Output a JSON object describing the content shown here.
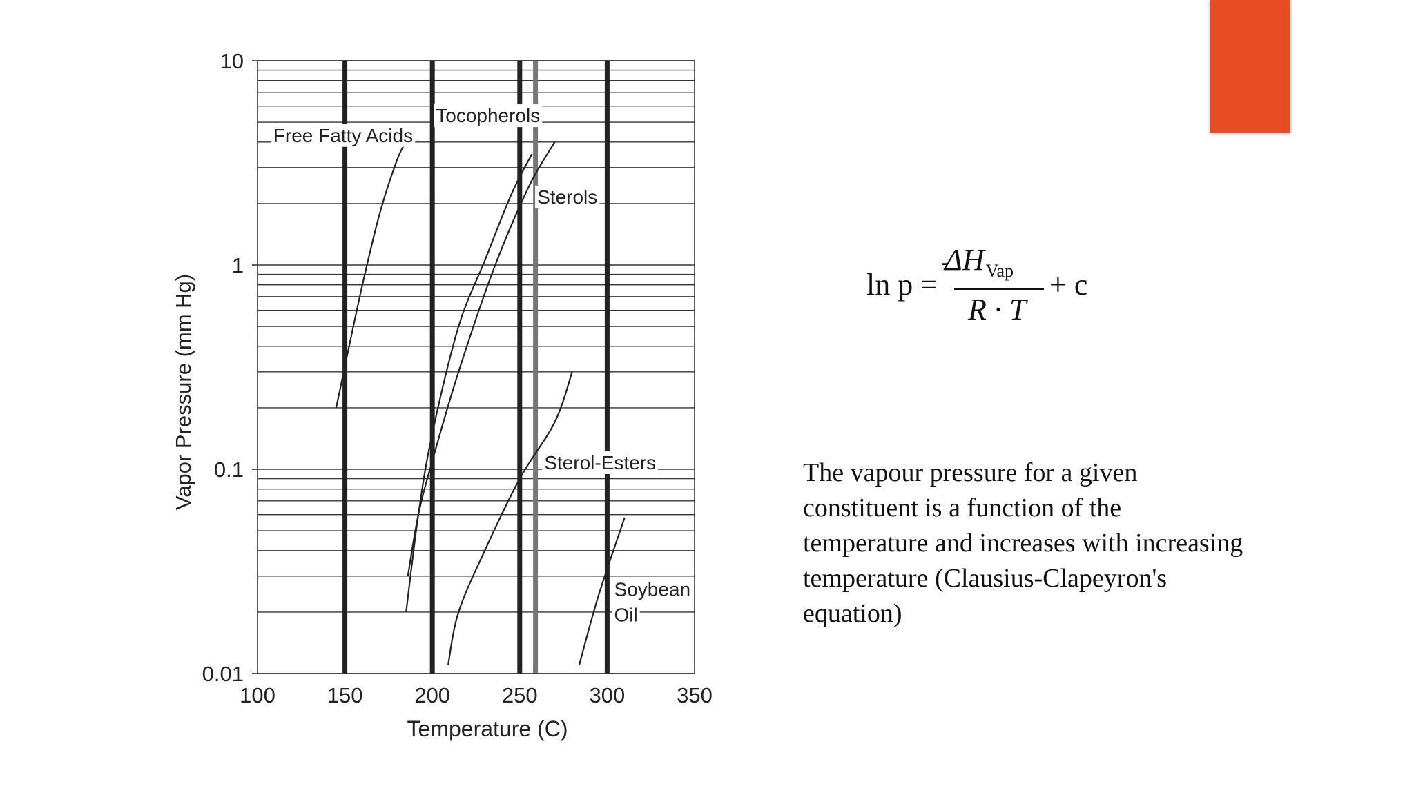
{
  "slide": {
    "accent_color": "#E84C25",
    "equation": {
      "lhs": "ln p =",
      "minus": "-",
      "numerator": "ΔH",
      "numerator_sub": "Vap",
      "denominator": "R · T",
      "rhs": "+ c"
    },
    "description": "The vapour pressure for a given constituent is a function of the temperature and increases with increasing temperature (Clausius-Clapeyron's equation)"
  },
  "chart_data": {
    "type": "line",
    "title": "",
    "xlabel": "Temperature (C)",
    "ylabel": "Vapor Pressure (mm Hg)",
    "xlim": [
      100,
      350
    ],
    "ylim": [
      0.01,
      10
    ],
    "yscale": "log",
    "x_ticks": [
      "100",
      "150",
      "200",
      "250",
      "300",
      "350"
    ],
    "y_ticks": [
      "0.01",
      "0.1",
      "1",
      "10"
    ],
    "grid": true,
    "series_labels": [
      {
        "text": "Free Fatty Acids",
        "x": 109,
        "y": 4.0
      },
      {
        "text": "Tocopherols",
        "x": 202,
        "y": 5.0
      },
      {
        "text": "Sterols",
        "x": 260,
        "y": 2.0
      },
      {
        "text": "Sterol-Esters",
        "x": 264,
        "y": 0.1
      },
      {
        "text": "Soybean",
        "x": 304,
        "y": 0.024
      },
      {
        "text": "Oil",
        "x": 304,
        "y": 0.018
      }
    ],
    "series": [
      {
        "name": "Free Fatty Acids",
        "points": [
          [
            145,
            0.2
          ],
          [
            150,
            0.32
          ],
          [
            160,
            0.8
          ],
          [
            170,
            1.8
          ],
          [
            180,
            3.3
          ],
          [
            185,
            4.0
          ]
        ]
      },
      {
        "name": "Tocopherols",
        "points": [
          [
            185,
            0.02
          ],
          [
            192,
            0.06
          ],
          [
            200,
            0.15
          ],
          [
            215,
            0.5
          ],
          [
            230,
            1.05
          ],
          [
            245,
            2.2
          ],
          [
            257,
            3.5
          ]
        ]
      },
      {
        "name": "Sterols",
        "points": [
          [
            186,
            0.03
          ],
          [
            192,
            0.06
          ],
          [
            200,
            0.11
          ],
          [
            215,
            0.3
          ],
          [
            235,
            0.95
          ],
          [
            255,
            2.4
          ],
          [
            270,
            4.0
          ]
        ]
      },
      {
        "name": "Sterol-Esters",
        "points": [
          [
            209,
            0.011
          ],
          [
            215,
            0.02
          ],
          [
            230,
            0.04
          ],
          [
            250,
            0.09
          ],
          [
            270,
            0.17
          ],
          [
            280,
            0.3
          ]
        ]
      },
      {
        "name": "Soybean Oil",
        "points": [
          [
            284,
            0.011
          ],
          [
            295,
            0.024
          ],
          [
            310,
            0.058
          ]
        ]
      }
    ],
    "emphasized_gridlines": [
      {
        "x": 150,
        "color": "#222222"
      },
      {
        "x": 200,
        "color": "#222222"
      },
      {
        "x": 250,
        "color": "#222222"
      },
      {
        "x": 259,
        "color": "#777777"
      },
      {
        "x": 300,
        "color": "#222222"
      }
    ]
  }
}
